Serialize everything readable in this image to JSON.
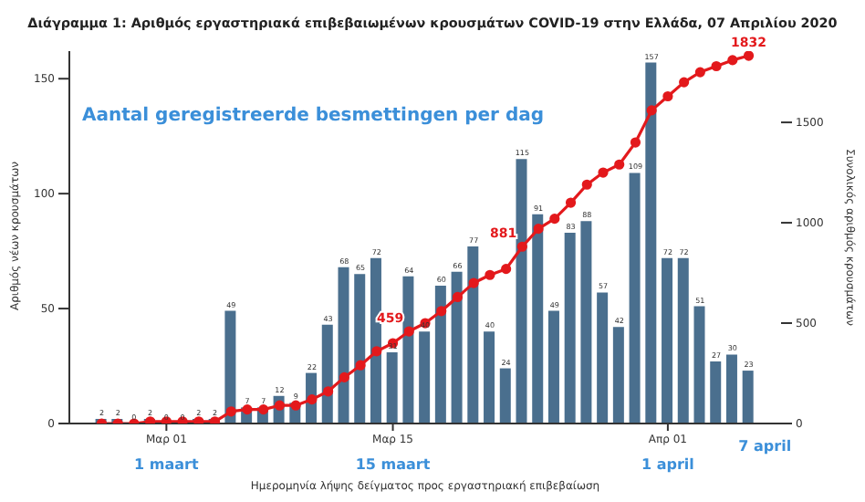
{
  "chart_data": {
    "type": "bar",
    "title": "Διάγραμμα 1: Αριθμός εργαστηριακά επιβεβαιωμένων κρουσμάτων COVID-19 στην Ελλάδα, 07 Απριλίου 2020",
    "subtitle": "Aantal geregistreerde besmettingen per dag",
    "xlabel": "Ημερομηνία λήψης δείγματος προς εργαστηριακή επιβεβαίωση",
    "ylabel": "Αριθμός νέων κρουσμάτων",
    "y2label": "Συνολικός αριθμός κρουσμάτων",
    "x": [
      "2020-02-26",
      "2020-02-27",
      "2020-02-28",
      "2020-02-29",
      "2020-03-01",
      "2020-03-02",
      "2020-03-03",
      "2020-03-04",
      "2020-03-05",
      "2020-03-06",
      "2020-03-07",
      "2020-03-08",
      "2020-03-09",
      "2020-03-10",
      "2020-03-11",
      "2020-03-12",
      "2020-03-13",
      "2020-03-14",
      "2020-03-15",
      "2020-03-16",
      "2020-03-17",
      "2020-03-18",
      "2020-03-19",
      "2020-03-20",
      "2020-03-21",
      "2020-03-22",
      "2020-03-23",
      "2020-03-24",
      "2020-03-25",
      "2020-03-26",
      "2020-03-27",
      "2020-03-28",
      "2020-03-29",
      "2020-03-30",
      "2020-03-31",
      "2020-04-01",
      "2020-04-02",
      "2020-04-03",
      "2020-04-04",
      "2020-04-05",
      "2020-04-06"
    ],
    "series": [
      {
        "color": "#4a6f8e",
        "values": [
          2,
          2,
          0,
          2,
          0,
          0,
          2,
          2,
          49,
          7,
          7,
          12,
          9,
          22,
          43,
          68,
          65,
          72,
          31,
          64,
          40,
          60,
          66,
          77,
          40,
          24,
          115,
          91,
          49,
          83,
          88,
          57,
          42,
          109,
          157,
          72,
          72,
          51,
          27,
          30,
          23
        ],
        "value_labels": [
          "2",
          "2",
          "0",
          "2",
          "0",
          "0",
          "2",
          "2",
          "49",
          "7",
          "7",
          "12",
          "9",
          "22",
          "43",
          "68",
          "65",
          "72",
          "31",
          "64",
          "40",
          "60",
          "66",
          "77",
          "40",
          "24",
          "115",
          "91",
          "49",
          "83",
          "88",
          "57",
          "42",
          "109",
          "157",
          "72",
          "72",
          "51",
          "27",
          "30",
          "23"
        ]
      },
      {
        "type": "line",
        "axis": "y2",
        "color": "#e3191c",
        "values": [
          0,
          0,
          0,
          10,
          10,
          10,
          10,
          10,
          60,
          70,
          70,
          90,
          90,
          120,
          160,
          230,
          290,
          360,
          400,
          459,
          500,
          560,
          630,
          700,
          740,
          770,
          881,
          970,
          1020,
          1100,
          1190,
          1250,
          1290,
          1400,
          1560,
          1630,
          1700,
          1750,
          1780,
          1810,
          1832
        ],
        "value_labels": [
          null,
          null,
          null,
          null,
          null,
          null,
          null,
          null,
          null,
          null,
          null,
          null,
          null,
          null,
          null,
          null,
          null,
          null,
          null,
          "459",
          null,
          null,
          null,
          null,
          null,
          null,
          "881",
          null,
          null,
          null,
          null,
          null,
          null,
          null,
          null,
          null,
          null,
          null,
          null,
          null,
          "1832"
        ]
      }
    ],
    "marker": "circle",
    "xlim": [
      "2020-02-24",
      "2020-04-08"
    ],
    "xticks": [
      {
        "value": "2020-03-01",
        "label": "Μαρ 01"
      },
      {
        "value": "2020-03-15",
        "label": "Μαρ 15"
      },
      {
        "value": "2020-04-01",
        "label": "Απρ 01"
      }
    ],
    "ylim": [
      0,
      162
    ],
    "yticks": [
      0,
      50,
      100,
      150
    ],
    "y2lim": [
      0,
      1855
    ],
    "y2ticks": [
      0,
      500,
      1000,
      1500
    ],
    "annotations": [
      "1 maart",
      "15 maart",
      "1 april",
      "7 april"
    ],
    "grid": false,
    "legend": false
  }
}
